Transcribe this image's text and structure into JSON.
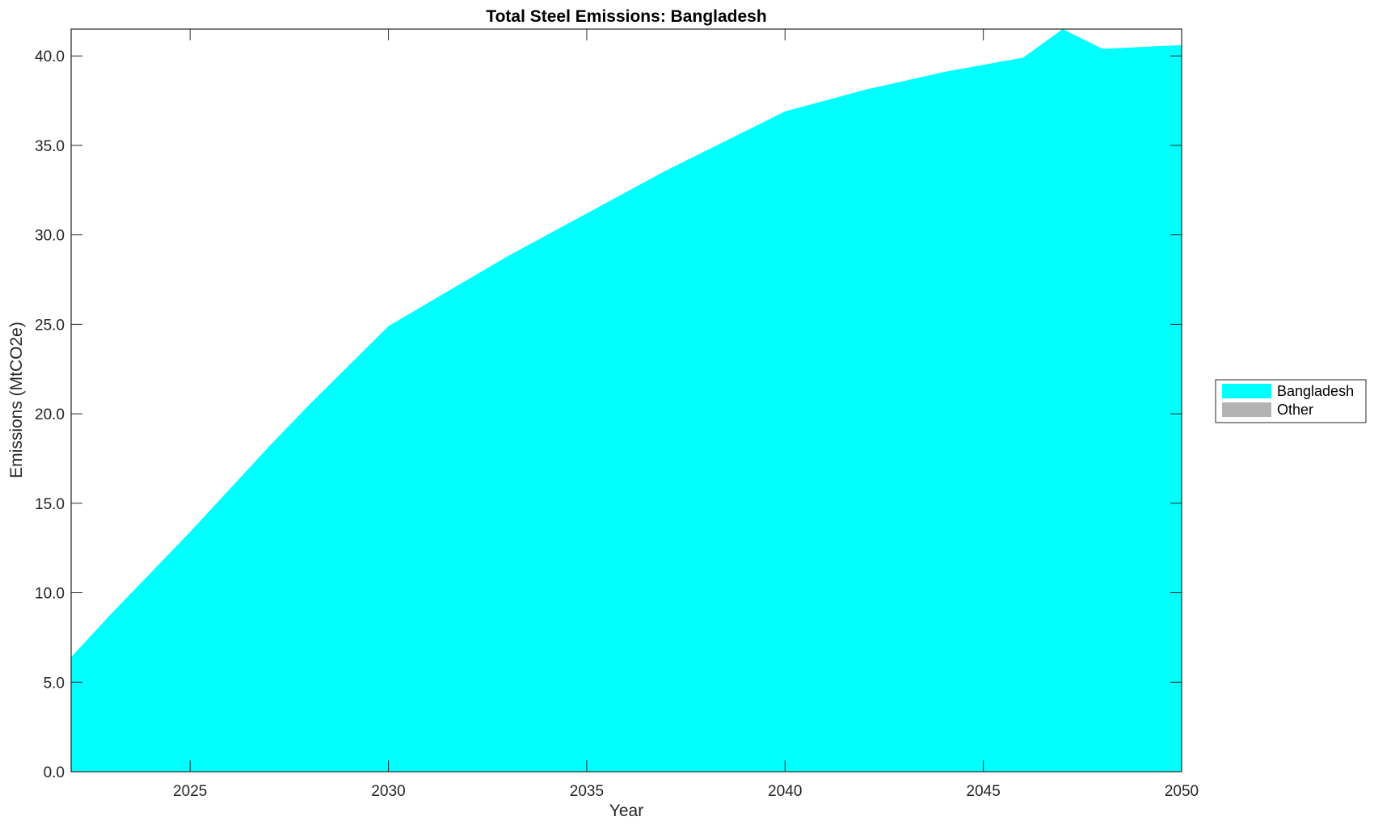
{
  "chart_data": {
    "type": "area",
    "stacked": true,
    "title": "Total Steel Emissions: Bangladesh",
    "xlabel": "Year",
    "ylabel": "Emissions (MtCO2e)",
    "xlim": [
      2022,
      2050
    ],
    "ylim": [
      0,
      41.5
    ],
    "xticks": [
      2025,
      2030,
      2035,
      2040,
      2045,
      2050
    ],
    "yticks": [
      "0.0",
      "5.0",
      "10.0",
      "15.0",
      "20.0",
      "25.0",
      "30.0",
      "35.0",
      "40.0"
    ],
    "grid": false,
    "legend_placement": "right",
    "x": [
      2022,
      2023,
      2024,
      2025,
      2026,
      2027,
      2028,
      2029,
      2030,
      2031,
      2032,
      2033,
      2034,
      2035,
      2036,
      2037,
      2038,
      2039,
      2040,
      2041,
      2042,
      2043,
      2044,
      2045,
      2046,
      2047,
      2048,
      2049,
      2050
    ],
    "series": [
      {
        "name": "Bangladesh",
        "color": "#00ffff",
        "values": [
          6.4,
          8.8,
          11.1,
          13.4,
          15.8,
          18.2,
          20.5,
          22.7,
          24.9,
          26.2,
          27.5,
          28.8,
          30.0,
          31.2,
          32.4,
          33.6,
          34.7,
          35.8,
          36.9,
          37.5,
          38.1,
          38.6,
          39.1,
          39.5,
          39.9,
          41.5,
          40.4,
          40.5,
          40.6
        ]
      },
      {
        "name": "Other",
        "color": "#b3b3b3",
        "values": [
          0,
          0,
          0,
          0,
          0,
          0,
          0,
          0,
          0,
          0,
          0,
          0,
          0,
          0,
          0,
          0,
          0,
          0,
          0,
          0,
          0,
          0,
          0,
          0,
          0,
          0,
          0,
          0,
          0
        ]
      }
    ]
  }
}
